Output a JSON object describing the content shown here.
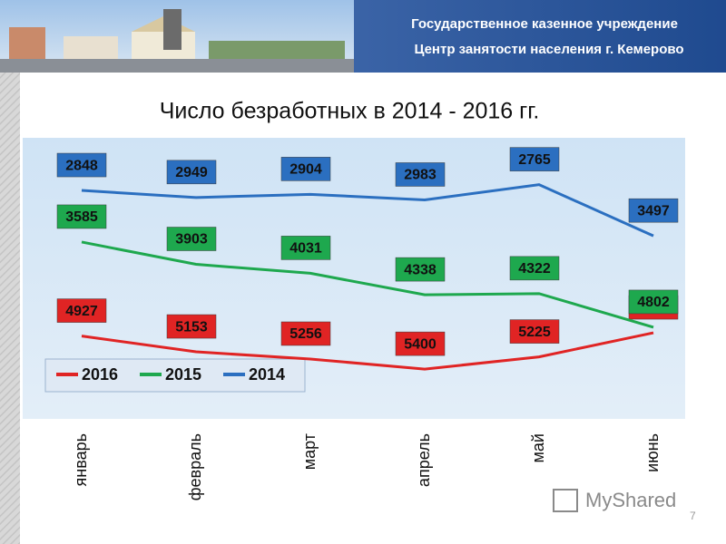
{
  "header": {
    "line1": "Государственное казенное учреждение",
    "line2": "Центр занятости населения г. Кемерово"
  },
  "chart_data": {
    "type": "line",
    "title": "Число безработных в 2014 - 2016 гг.",
    "categories": [
      "январь",
      "февраль",
      "март",
      "апрель",
      "май",
      "июнь"
    ],
    "series": [
      {
        "name": "2016",
        "color": "#e02424",
        "values": [
          4927,
          5153,
          5256,
          5400,
          5225,
          4881
        ]
      },
      {
        "name": "2015",
        "color": "#1ea84e",
        "values": [
          3585,
          3903,
          4031,
          4338,
          4322,
          4802
        ]
      },
      {
        "name": "2014",
        "color": "#2b6fc0",
        "values": [
          2848,
          2949,
          2904,
          2983,
          2765,
          3497
        ]
      }
    ],
    "ylim": [
      2200,
      5800
    ],
    "y_reversed": true,
    "legend": "lower-left"
  },
  "watermark": "MyShared",
  "slide_number": 7
}
